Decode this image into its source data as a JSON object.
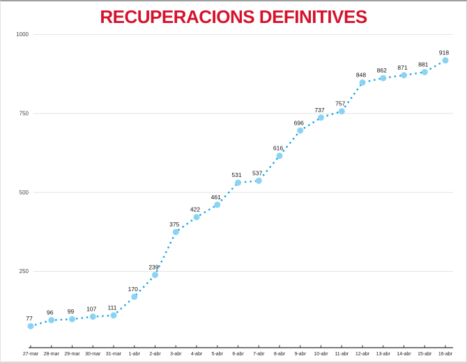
{
  "title": "RECUPERACIONS DEFINITIVES",
  "colors": {
    "title": "#d6122b",
    "marker": "#85d2f3",
    "dotted_line": "#1ea7e0",
    "gridline": "#e3e3e3",
    "axis": "#2a2a2a",
    "label": "#111111"
  },
  "chart_data": {
    "type": "line",
    "title": "RECUPERACIONS DEFINITIVES",
    "xlabel": "",
    "ylabel": "",
    "categories": [
      "27-mar",
      "28-mar",
      "29-mar",
      "30-mar",
      "31-mar",
      "1-abr",
      "2-abr",
      "3-abr",
      "4-abr",
      "5-abr",
      "6-abr",
      "7-abr",
      "8-abr",
      "9-abr",
      "10-abr",
      "11-abr",
      "12-abr",
      "13-abr",
      "14-abr",
      "15-abr",
      "16-abr"
    ],
    "values": [
      77,
      96,
      99,
      107,
      111,
      170,
      239,
      375,
      422,
      461,
      531,
      537,
      616,
      696,
      737,
      757,
      848,
      862,
      871,
      881,
      918
    ],
    "ylim": [
      0,
      1000
    ],
    "yticks": [
      250,
      500,
      750,
      1000
    ],
    "grid": true,
    "legend": "none",
    "line_style": "dotted",
    "data_labels": true
  }
}
